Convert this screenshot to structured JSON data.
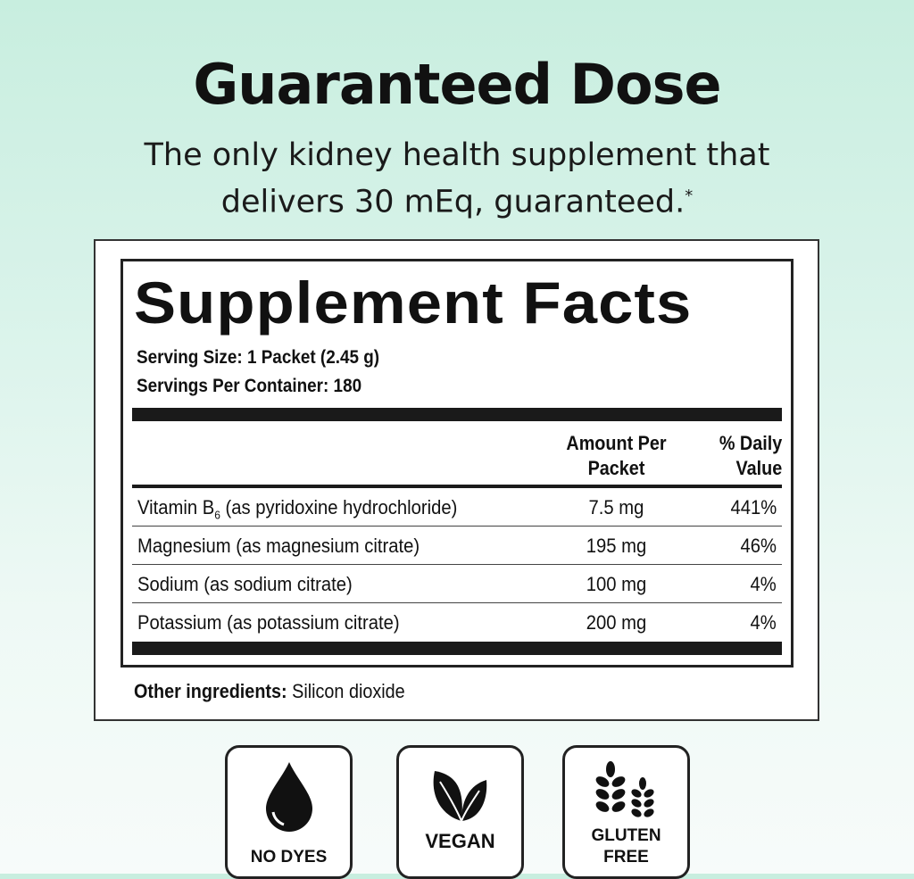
{
  "headline": "Guaranteed Dose",
  "subheadline": {
    "line1": "The only kidney health supplement that",
    "line2": "delivers 30 mEq, guaranteed.",
    "footnote_mark": "*"
  },
  "facts": {
    "title": "Supplement Facts",
    "serving_size": "Serving Size: 1 Packet (2.45 g)",
    "servings_per_container": "Servings Per Container: 180",
    "col_amount": {
      "line1": "Amount Per",
      "line2": "Packet"
    },
    "col_dv": {
      "line1": "% Daily",
      "line2": "Value"
    },
    "rows": [
      {
        "name": "Vitamin B",
        "sub": "6",
        "name_rest": " (as pyridoxine hydrochloride)",
        "amount": "7.5 mg",
        "dv": "441%"
      },
      {
        "name": "Magnesium (as magnesium citrate)",
        "amount": "195 mg",
        "dv": "46%"
      },
      {
        "name": "Sodium (as sodium citrate)",
        "amount": "100 mg",
        "dv": "4%"
      },
      {
        "name": "Potassium (as potassium citrate)",
        "amount": "200 mg",
        "dv": "4%"
      }
    ],
    "other_label": "Other ingredients:",
    "other_value": " Silicon dioxide"
  },
  "badges": [
    {
      "icon": "drop-icon",
      "label": "NO DYES"
    },
    {
      "icon": "leaf-icon",
      "label": "VEGAN"
    },
    {
      "icon": "wheat-icon",
      "label1": "GLUTEN",
      "label2": "FREE"
    }
  ]
}
